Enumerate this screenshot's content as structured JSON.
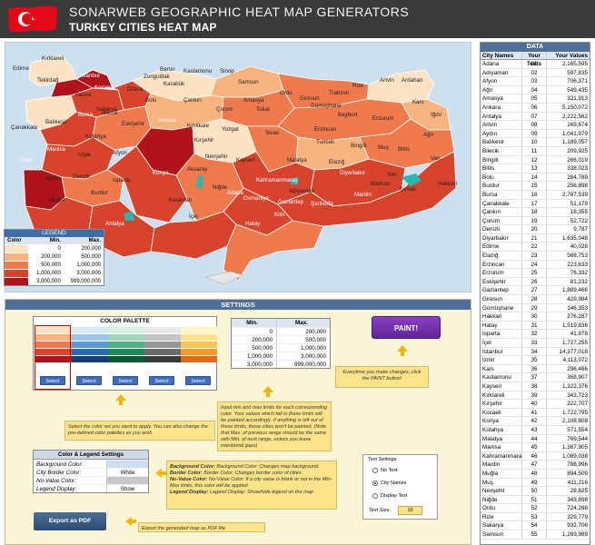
{
  "header": {
    "title": "SONARWEB GEOGRAPHIC HEAT MAP GENERATORS",
    "subtitle": "TURKEY CITIES HEAT MAP"
  },
  "colors": {
    "header_bg": "#3a3a3a",
    "map_bg": "#cde0f0",
    "accent_blue": "#4e6f97",
    "paint_purple": "#6c2da8",
    "note_yellow": "#fde48b",
    "scale": [
      "#fde3c4",
      "#f8b47f",
      "#ee7a4e",
      "#d8432b",
      "#b1131a"
    ]
  },
  "map_labels": {
    "cities": [
      "Edirne",
      "Kırklareli",
      "İstanbul",
      "Tekirdağ",
      "Kocaeli",
      "Yalova",
      "Sakarya",
      "Düzce",
      "Zonguldak",
      "Bartın",
      "Karabük",
      "Kastamonu",
      "Sinop",
      "Samsun",
      "Amasya",
      "Ordu",
      "Giresun",
      "Trabzon",
      "Rize",
      "Artvin",
      "Ardahan",
      "Kars",
      "Iğdır",
      "Çanakkale",
      "Bursa",
      "Bilecik",
      "Bolu",
      "Çankırı",
      "Çorum",
      "Tokat",
      "Gümüşhane",
      "Bayburt",
      "Erzurum",
      "Ağrı",
      "Balıkesir",
      "Eskişehir",
      "Ankara",
      "Kırıkkale",
      "Yozgat",
      "Sivas",
      "Erzincan",
      "Tunceli",
      "Bingöl",
      "Muş",
      "Van",
      "Manisa",
      "Kütahya",
      "Kırşehir",
      "Elazığ",
      "Bitlis",
      "Uşak",
      "Afyon",
      "Nevşehir",
      "Kayseri",
      "Malatya",
      "Diyarbakır",
      "Siirt",
      "İzmir",
      "Aydın",
      "Denizli",
      "Isparta",
      "Konya",
      "Aksaray",
      "Niğde",
      "Kahramanmaraş",
      "Adıyaman",
      "Batman",
      "Şırnak",
      "Hakkari",
      "Muğla",
      "Burdur",
      "Antalya",
      "Karaman",
      "Adana",
      "Osmaniye",
      "Gaziantep",
      "Şanlıurfa",
      "Mardin",
      "Kilis",
      "İçel",
      "Hatay"
    ]
  },
  "legend": {
    "title": "LEGEND",
    "headers": [
      "Color",
      "Min.",
      "Max."
    ],
    "rows": [
      {
        "min": "0",
        "max": "200,000"
      },
      {
        "min": "200,000",
        "max": "500,000"
      },
      {
        "min": "500,000",
        "max": "1,000,000"
      },
      {
        "min": "1,000,000",
        "max": "3,000,000"
      },
      {
        "min": "3,000,000",
        "max": "999,000,000"
      }
    ]
  },
  "settings": {
    "title": "SETTINGS",
    "palette": {
      "title": "COLOR PALETTE",
      "select_label": "Select",
      "columns": [
        [
          "#fde3c4",
          "#f8b47f",
          "#ee7a4e",
          "#d8432b",
          "#b1131a"
        ],
        [
          "#d7e7f5",
          "#9ec5e6",
          "#5a9bd4",
          "#2b6cb0",
          "#123e7a"
        ],
        [
          "#d8efe3",
          "#9fd8b8",
          "#4fb486",
          "#1e8a5a",
          "#0b5a36"
        ],
        [
          "#e8e8e8",
          "#c4c4c4",
          "#969696",
          "#6a6a6a",
          "#3a3a3a"
        ],
        [
          "#fff6c4",
          "#fde48b",
          "#f9c451",
          "#f29a28",
          "#e06a0f"
        ]
      ]
    },
    "minmax": {
      "headers": [
        "Min.",
        "Max."
      ],
      "rows": [
        [
          "0",
          "200,000"
        ],
        [
          "200,000",
          "500,000"
        ],
        [
          "500,000",
          "1,000,000"
        ],
        [
          "1,000,000",
          "3,000,000"
        ],
        [
          "3,000,000",
          "999,000,000"
        ]
      ]
    },
    "paint_label": "PAINT!",
    "paint_note": "Everytime you make changes, click the PAINT button!",
    "minmax_note": "Input min and max limits for each corresponding color. Your values which fall in these limits will be painted accordingly. If anything is left out of these limits, those cities won't be painted. (Note that Max. of previous range should be the same with Min. of next range, unless you leave intentional gaps)",
    "palette_note": "Select the color set you want to apply. You can also change the pre-defined color palettes as you wish.",
    "color_legend": {
      "title": "Color & Legend Settings",
      "rows": [
        {
          "label": "Background Color:",
          "value": ""
        },
        {
          "label": "City Border Color:",
          "value": "White"
        },
        {
          "label": "No-Value Color:",
          "value": ""
        },
        {
          "label": "Legend Display:",
          "value": "Show"
        }
      ]
    },
    "settings_note": {
      "bg": "Background Color: Changes map background.",
      "border": "Border Color: Changes border color of cities",
      "novalue": "No-Value Color: If a city value is blank or not in the Min-Max limits, this color will be applied",
      "legend": "Legend Display: Show/hide legend on the map"
    },
    "export_label": "Export as PDF",
    "export_note": "Export the generated map as PDF file",
    "text_settings": {
      "title": "Text Settings",
      "options": [
        "No Text",
        "City Names",
        "Display Text"
      ],
      "selected": "City Names",
      "size_label": "Text Size:",
      "size_value": "10"
    }
  },
  "data": {
    "title": "DATA",
    "headers": [
      "City Names",
      "Your Texts",
      "Your Values"
    ],
    "rows": [
      [
        "Adana",
        "01",
        "2,165,595"
      ],
      [
        "Adıyaman",
        "02",
        "597,835"
      ],
      [
        "Afyon",
        "03",
        "706,371"
      ],
      [
        "Ağrı",
        "04",
        "549,435"
      ],
      [
        "Amasya",
        "05",
        "321,913"
      ],
      [
        "Ankara",
        "06",
        "5,150,072"
      ],
      [
        "Antalya",
        "07",
        "2,222,562"
      ],
      [
        "Artvin",
        "08",
        "169,674"
      ],
      [
        "Aydın",
        "09",
        "1,041,979"
      ],
      [
        "Balıkesir",
        "10",
        "1,189,057"
      ],
      [
        "Bilecik",
        "11",
        "209,925"
      ],
      [
        "Bingöl",
        "12",
        "266,019"
      ],
      [
        "Bitlis",
        "13",
        "338,023"
      ],
      [
        "Bolu",
        "14",
        "284,789"
      ],
      [
        "Burdur",
        "15",
        "256,898"
      ],
      [
        "Bursa",
        "16",
        "2,787,539"
      ],
      [
        "Çanakkale",
        "17",
        "51,179"
      ],
      [
        "Çankırı",
        "18",
        "18,355"
      ],
      [
        "Çorum",
        "19",
        "52,722"
      ],
      [
        "Denizli",
        "20",
        "9,787"
      ],
      [
        "Diyarbakır",
        "21",
        "1,635,048"
      ],
      [
        "Edirne",
        "22",
        "40,028"
      ],
      [
        "Elazığ",
        "23",
        "568,753"
      ],
      [
        "Erzincan",
        "24",
        "223,633"
      ],
      [
        "Erzurum",
        "25",
        "76,332"
      ],
      [
        "Eskişehir",
        "26",
        "81,232"
      ],
      [
        "Gaziantep",
        "27",
        "1,889,466"
      ],
      [
        "Giresun",
        "28",
        "429,984"
      ],
      [
        "Gümüşhane",
        "29",
        "146,353"
      ],
      [
        "Hakkari",
        "30",
        "276,287"
      ],
      [
        "Hatay",
        "31",
        "1,519,836"
      ],
      [
        "Isparta",
        "32",
        "41,878"
      ],
      [
        "İçel",
        "33",
        "1,727,255"
      ],
      [
        "İstanbul",
        "34",
        "14,377,018"
      ],
      [
        "İzmir",
        "35",
        "4,113,072"
      ],
      [
        "Kars",
        "36",
        "296,466"
      ],
      [
        "Kastamonu",
        "37",
        "368,907"
      ],
      [
        "Kayseri",
        "38",
        "1,322,376"
      ],
      [
        "Kırklareli",
        "39",
        "343,723"
      ],
      [
        "Kırşehir",
        "40",
        "222,707"
      ],
      [
        "Kocaeli",
        "41",
        "1,722,795"
      ],
      [
        "Konya",
        "42",
        "2,108,808"
      ],
      [
        "Kütahya",
        "43",
        "571,554"
      ],
      [
        "Malatya",
        "44",
        "769,544"
      ],
      [
        "Manisa",
        "45",
        "1,367,905"
      ],
      [
        "Kahramanmaraş",
        "46",
        "1,089,038"
      ],
      [
        "Mardin",
        "47",
        "788,996"
      ],
      [
        "Muğla",
        "48",
        "894,509"
      ],
      [
        "Muş",
        "49",
        "411,216"
      ],
      [
        "Nevşehir",
        "50",
        "28,625"
      ],
      [
        "Niğde",
        "51",
        "343,898"
      ],
      [
        "Ordu",
        "52",
        "724,268"
      ],
      [
        "Rize",
        "53",
        "329,779"
      ],
      [
        "Sakarya",
        "54",
        "932,706"
      ],
      [
        "Samsun",
        "55",
        "1,269,989"
      ]
    ]
  }
}
